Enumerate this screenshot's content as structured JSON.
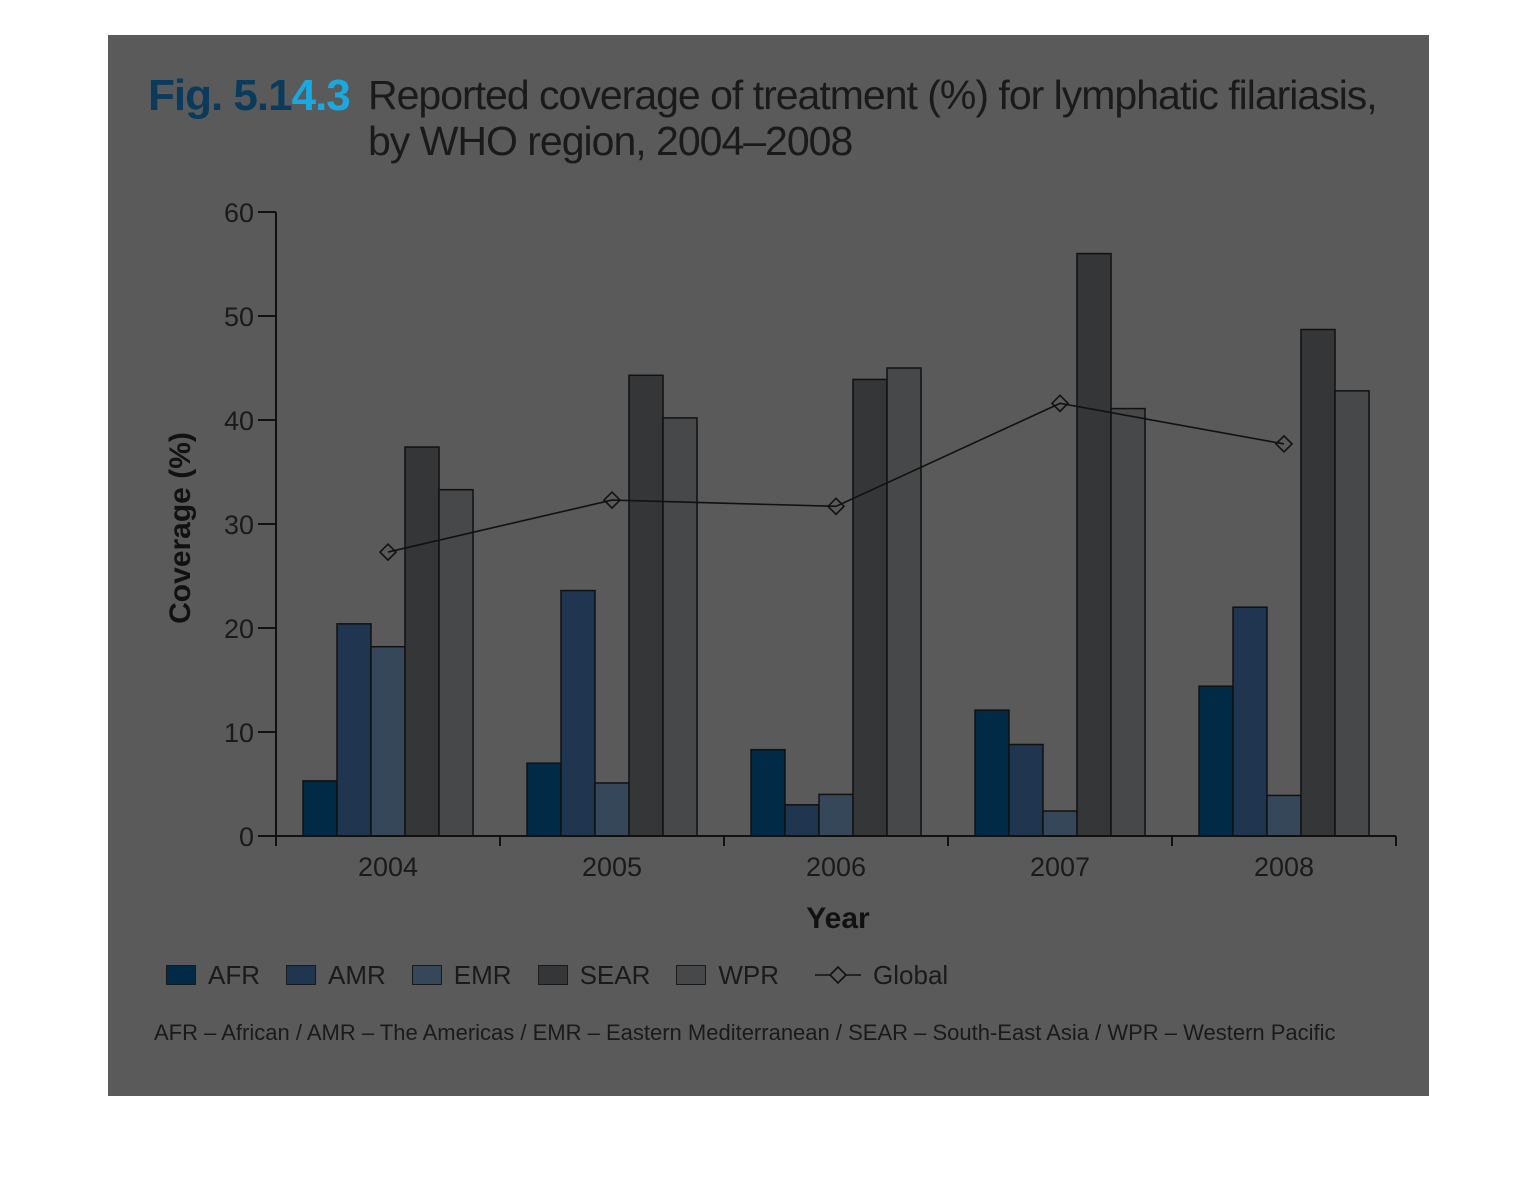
{
  "figure": {
    "label_part1": "Fig. 5.1",
    "label_part2": "4.3",
    "title": "Reported coverage of treatment (%) for lymphatic filariasis, by WHO region, 2004–2008"
  },
  "chart_data": {
    "type": "bar",
    "categories": [
      "2004",
      "2005",
      "2006",
      "2007",
      "2008"
    ],
    "series": [
      {
        "name": "AFR",
        "values": [
          5.3,
          7.0,
          8.3,
          12.1,
          14.4
        ],
        "color": "#012a47"
      },
      {
        "name": "AMR",
        "values": [
          20.4,
          23.6,
          3.0,
          8.8,
          22.0
        ],
        "color": "#1f3550"
      },
      {
        "name": "EMR",
        "values": [
          18.2,
          5.1,
          4.0,
          2.4,
          3.9
        ],
        "color": "#37475a"
      },
      {
        "name": "SEAR",
        "values": [
          37.4,
          44.3,
          43.9,
          56.0,
          48.7
        ],
        "color": "#343638"
      },
      {
        "name": "WPR",
        "values": [
          33.3,
          40.2,
          45.0,
          41.1,
          42.8
        ],
        "color": "#464849"
      }
    ],
    "line_series": {
      "name": "Global",
      "values": [
        27.3,
        32.3,
        31.7,
        41.6,
        37.7
      ],
      "marker": "diamond"
    },
    "xlabel": "Year",
    "ylabel": "Coverage (%)",
    "ylim": [
      0,
      60
    ],
    "yticks": [
      0,
      10,
      20,
      30,
      40,
      50,
      60
    ],
    "grid": false,
    "legend_position": "bottom"
  },
  "footnote": "AFR – African / AMR – The Americas / EMR – Eastern Mediterranean / SEAR – South-East Asia / WPR – Western Pacific"
}
